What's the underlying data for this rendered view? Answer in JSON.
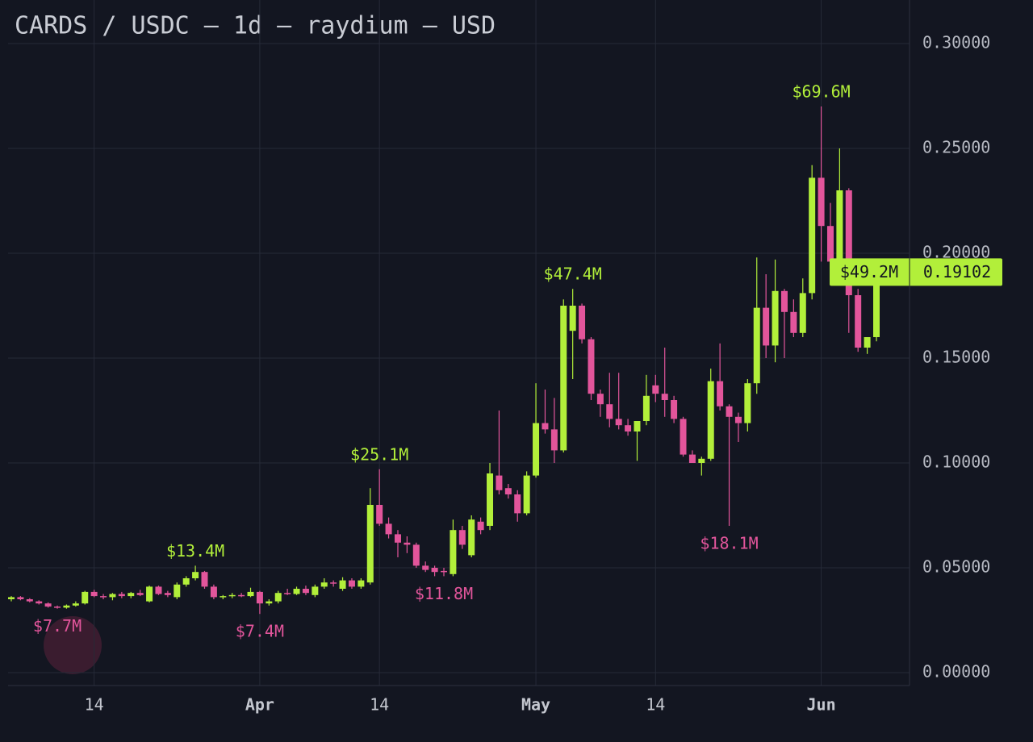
{
  "chart_data": {
    "type": "candlestick",
    "title": "CARDS / USDC — 1d — raydium — USD",
    "categories": [
      "Mar 5",
      "Mar 6",
      "Mar 7",
      "Mar 8",
      "Mar 9",
      "Mar 10",
      "Mar 11",
      "Mar 12",
      "Mar 13",
      "Mar 14",
      "Mar 15",
      "Mar 16",
      "Mar 17",
      "Mar 18",
      "Mar 19",
      "Mar 20",
      "Mar 21",
      "Mar 22",
      "Mar 23",
      "Mar 24",
      "Mar 25",
      "Mar 26",
      "Mar 27",
      "Mar 28",
      "Mar 29",
      "Mar 30",
      "Mar 31",
      "Apr 1",
      "Apr 2",
      "Apr 3",
      "Apr 4",
      "Apr 5",
      "Apr 6",
      "Apr 7",
      "Apr 8",
      "Apr 9",
      "Apr 10",
      "Apr 11",
      "Apr 12",
      "Apr 13",
      "Apr 14",
      "Apr 15",
      "Apr 16",
      "Apr 17",
      "Apr 18",
      "Apr 19",
      "Apr 20",
      "Apr 21",
      "Apr 22",
      "Apr 23",
      "Apr 24",
      "Apr 25",
      "Apr 26",
      "Apr 27",
      "Apr 28",
      "Apr 29",
      "Apr 30",
      "May 1",
      "May 2",
      "May 3",
      "May 4",
      "May 5",
      "May 6",
      "May 7",
      "May 8",
      "May 9",
      "May 10",
      "May 11",
      "May 12",
      "May 13",
      "May 14",
      "May 15",
      "May 16",
      "May 17",
      "May 18",
      "May 19",
      "May 20",
      "May 21",
      "May 22",
      "May 23",
      "May 24",
      "May 25",
      "May 26",
      "May 27",
      "May 28",
      "May 29",
      "May 30",
      "May 31",
      "Jun 1",
      "Jun 2",
      "Jun 3",
      "Jun 4",
      "Jun 5",
      "Jun 6",
      "Jun 7"
    ],
    "series": {
      "open": [
        0.035,
        0.036,
        0.035,
        0.034,
        0.033,
        0.0315,
        0.031,
        0.032,
        0.033,
        0.0385,
        0.0365,
        0.036,
        0.0375,
        0.0365,
        0.038,
        0.034,
        0.041,
        0.038,
        0.036,
        0.042,
        0.045,
        0.048,
        0.041,
        0.036,
        0.0365,
        0.037,
        0.0365,
        0.0385,
        0.033,
        0.034,
        0.038,
        0.0375,
        0.04,
        0.037,
        0.041,
        0.043,
        0.04,
        0.044,
        0.041,
        0.043,
        0.08,
        0.071,
        0.066,
        0.062,
        0.061,
        0.051,
        0.05,
        0.0485,
        0.047,
        0.068,
        0.056,
        0.072,
        0.07,
        0.094,
        0.088,
        0.085,
        0.076,
        0.094,
        0.119,
        0.116,
        0.106,
        0.163,
        0.175,
        0.159,
        0.133,
        0.128,
        0.121,
        0.118,
        0.115,
        0.12,
        0.137,
        0.133,
        0.13,
        0.121,
        0.104,
        0.1,
        0.102,
        0.139,
        0.127,
        0.122,
        0.119,
        0.138,
        0.174,
        0.156,
        0.182,
        0.172,
        0.162,
        0.181,
        0.236,
        0.213,
        0.196,
        0.23,
        0.18,
        0.155,
        0.16
      ],
      "high": [
        0.0365,
        0.0365,
        0.0355,
        0.0345,
        0.0335,
        0.032,
        0.0325,
        0.034,
        0.039,
        0.0395,
        0.0375,
        0.038,
        0.0385,
        0.0385,
        0.0395,
        0.0415,
        0.0415,
        0.039,
        0.043,
        0.046,
        0.051,
        0.0485,
        0.042,
        0.037,
        0.038,
        0.038,
        0.0405,
        0.039,
        0.035,
        0.039,
        0.04,
        0.041,
        0.0415,
        0.042,
        0.045,
        0.044,
        0.0455,
        0.045,
        0.045,
        0.088,
        0.097,
        0.074,
        0.068,
        0.065,
        0.062,
        0.053,
        0.051,
        0.05,
        0.073,
        0.07,
        0.075,
        0.074,
        0.1,
        0.125,
        0.09,
        0.087,
        0.096,
        0.138,
        0.135,
        0.131,
        0.178,
        0.183,
        0.176,
        0.16,
        0.135,
        0.143,
        0.143,
        0.121,
        0.12,
        0.142,
        0.142,
        0.155,
        0.132,
        0.122,
        0.106,
        0.103,
        0.145,
        0.157,
        0.128,
        0.124,
        0.14,
        0.198,
        0.19,
        0.197,
        0.183,
        0.178,
        0.188,
        0.242,
        0.27,
        0.224,
        0.25,
        0.231,
        0.183,
        0.16,
        0.19102
      ],
      "low": [
        0.034,
        0.0345,
        0.0335,
        0.0325,
        0.031,
        0.0305,
        0.0305,
        0.0315,
        0.0325,
        0.036,
        0.035,
        0.0345,
        0.0355,
        0.0355,
        0.0365,
        0.0335,
        0.037,
        0.036,
        0.035,
        0.041,
        0.044,
        0.04,
        0.035,
        0.035,
        0.0355,
        0.036,
        0.036,
        0.028,
        0.032,
        0.033,
        0.037,
        0.037,
        0.037,
        0.036,
        0.04,
        0.041,
        0.039,
        0.04,
        0.04,
        0.042,
        0.07,
        0.064,
        0.055,
        0.057,
        0.05,
        0.048,
        0.046,
        0.046,
        0.046,
        0.059,
        0.055,
        0.066,
        0.068,
        0.085,
        0.083,
        0.072,
        0.075,
        0.093,
        0.114,
        0.1,
        0.105,
        0.14,
        0.157,
        0.13,
        0.122,
        0.117,
        0.116,
        0.113,
        0.101,
        0.118,
        0.129,
        0.122,
        0.119,
        0.103,
        0.1,
        0.094,
        0.101,
        0.125,
        0.07,
        0.11,
        0.115,
        0.133,
        0.15,
        0.148,
        0.15,
        0.16,
        0.16,
        0.178,
        0.196,
        0.185,
        0.19,
        0.162,
        0.153,
        0.152,
        0.158
      ],
      "close": [
        0.036,
        0.035,
        0.034,
        0.033,
        0.0315,
        0.031,
        0.032,
        0.033,
        0.0385,
        0.0365,
        0.036,
        0.0375,
        0.0365,
        0.038,
        0.037,
        0.041,
        0.0375,
        0.037,
        0.042,
        0.045,
        0.048,
        0.041,
        0.036,
        0.0365,
        0.037,
        0.0365,
        0.0385,
        0.033,
        0.034,
        0.038,
        0.0375,
        0.04,
        0.038,
        0.041,
        0.043,
        0.0425,
        0.044,
        0.041,
        0.044,
        0.08,
        0.071,
        0.066,
        0.062,
        0.061,
        0.051,
        0.049,
        0.048,
        0.048,
        0.068,
        0.061,
        0.073,
        0.068,
        0.095,
        0.087,
        0.085,
        0.076,
        0.094,
        0.119,
        0.116,
        0.106,
        0.175,
        0.175,
        0.159,
        0.133,
        0.128,
        0.121,
        0.118,
        0.115,
        0.12,
        0.132,
        0.133,
        0.13,
        0.121,
        0.104,
        0.1,
        0.102,
        0.139,
        0.127,
        0.122,
        0.119,
        0.138,
        0.174,
        0.156,
        0.182,
        0.172,
        0.162,
        0.181,
        0.236,
        0.213,
        0.196,
        0.23,
        0.18,
        0.155,
        0.16,
        0.19102
      ]
    },
    "up_color": "#b2ef3a",
    "down_color": "#e2559b",
    "ylim": [
      0,
      0.3
    ],
    "yticks": [
      {
        "value": 0,
        "label": "0.00000"
      },
      {
        "value": 0.05,
        "label": "0.05000"
      },
      {
        "value": 0.1,
        "label": "0.10000"
      },
      {
        "value": 0.15,
        "label": "0.15000"
      },
      {
        "value": 0.2,
        "label": "0.20000"
      },
      {
        "value": 0.25,
        "label": "0.25000"
      },
      {
        "value": 0.3,
        "label": "0.30000"
      }
    ],
    "xticks": [
      {
        "value": "Mar 14",
        "label": "14"
      },
      {
        "value": "Apr 1",
        "label": "Apr"
      },
      {
        "value": "Apr 14",
        "label": "14"
      },
      {
        "value": "May 1",
        "label": "May"
      },
      {
        "value": "May 14",
        "label": "14"
      },
      {
        "value": "Jun 1",
        "label": "Jun"
      }
    ],
    "grid": true,
    "annotations": [
      {
        "text": "$7.7M",
        "at": "Mar 10",
        "side": "low"
      },
      {
        "text": "$13.4M",
        "at": "Mar 25",
        "side": "high"
      },
      {
        "text": "$7.4M",
        "at": "Apr 1",
        "side": "low"
      },
      {
        "text": "$25.1M",
        "at": "Apr 14",
        "side": "high"
      },
      {
        "text": "$11.8M",
        "at": "Apr 21",
        "side": "low"
      },
      {
        "text": "$47.4M",
        "at": "May 5",
        "side": "high"
      },
      {
        "text": "$18.1M",
        "at": "May 22",
        "side": "low"
      },
      {
        "text": "$69.6M",
        "at": "Jun 1",
        "side": "high"
      }
    ],
    "last_price": {
      "value": 0.19102,
      "volume": "$49.2M"
    }
  }
}
